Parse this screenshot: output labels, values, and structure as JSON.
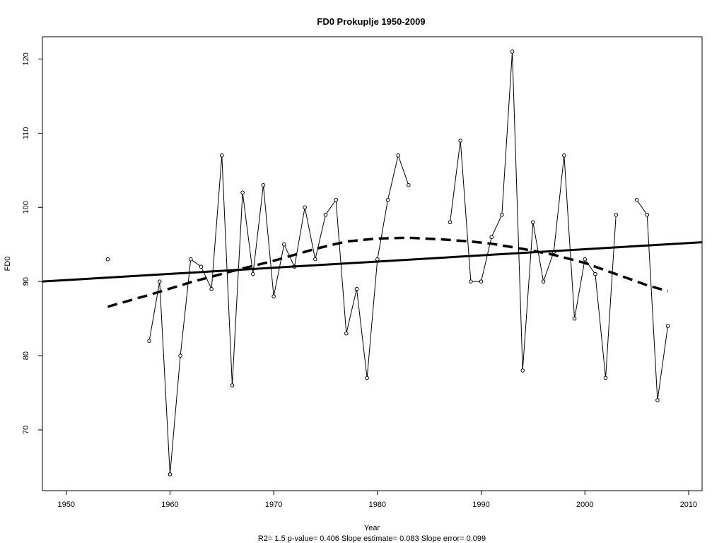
{
  "chart_data": {
    "type": "line",
    "title": "FD0   Prokuplje 1950-2009",
    "xlabel": "Year",
    "ylabel": "FD0",
    "stats": "R2= 1.5  p-value= 0.406  Slope estimate= 0.083  Slope error= 0.099",
    "xlim": [
      1947.7,
      2011.3
    ],
    "ylim": [
      61.8,
      123.0
    ],
    "xticks": [
      1950,
      1960,
      1970,
      1980,
      1990,
      2000,
      2010
    ],
    "yticks": [
      70,
      80,
      90,
      100,
      110,
      120
    ],
    "grid": false,
    "legend": "none",
    "series": [
      {
        "style": "line-with-open-points",
        "color": "#000000",
        "points": [
          [
            1954,
            93
          ],
          [
            1955,
            null
          ],
          [
            1956,
            null
          ],
          [
            1957,
            null
          ],
          [
            1958,
            82
          ],
          [
            1959,
            90
          ],
          [
            1960,
            64
          ],
          [
            1961,
            80
          ],
          [
            1962,
            93
          ],
          [
            1963,
            92
          ],
          [
            1964,
            89
          ],
          [
            1965,
            107
          ],
          [
            1966,
            76
          ],
          [
            1967,
            102
          ],
          [
            1968,
            91
          ],
          [
            1969,
            103
          ],
          [
            1970,
            88
          ],
          [
            1971,
            95
          ],
          [
            1972,
            92
          ],
          [
            1973,
            100
          ],
          [
            1974,
            93
          ],
          [
            1975,
            99
          ],
          [
            1976,
            101
          ],
          [
            1977,
            83
          ],
          [
            1978,
            89
          ],
          [
            1979,
            77
          ],
          [
            1980,
            93
          ],
          [
            1981,
            101
          ],
          [
            1982,
            107
          ],
          [
            1983,
            103
          ],
          [
            1984,
            null
          ],
          [
            1985,
            null
          ],
          [
            1986,
            null
          ],
          [
            1987,
            98
          ],
          [
            1988,
            109
          ],
          [
            1989,
            90
          ],
          [
            1990,
            90
          ],
          [
            1991,
            96
          ],
          [
            1992,
            99
          ],
          [
            1993,
            121
          ],
          [
            1994,
            78
          ],
          [
            1995,
            98
          ],
          [
            1996,
            90
          ],
          [
            1997,
            94
          ],
          [
            1998,
            107
          ],
          [
            1999,
            85
          ],
          [
            2000,
            93
          ],
          [
            2001,
            91
          ],
          [
            2002,
            77
          ],
          [
            2003,
            99
          ],
          [
            2004,
            null
          ],
          [
            2005,
            101
          ],
          [
            2006,
            99
          ],
          [
            2007,
            74
          ],
          [
            2008,
            84
          ]
        ]
      },
      {
        "style": "solid-thick",
        "color": "#000000",
        "points": [
          [
            1947.7,
            90.0
          ],
          [
            2011.3,
            95.3
          ]
        ]
      },
      {
        "style": "dashed-thick",
        "color": "#000000",
        "points": [
          [
            1954,
            86.6
          ],
          [
            1958,
            88.2
          ],
          [
            1962,
            89.9
          ],
          [
            1966,
            91.4
          ],
          [
            1970,
            92.8
          ],
          [
            1974,
            94.4
          ],
          [
            1977,
            95.4
          ],
          [
            1980,
            95.8
          ],
          [
            1983,
            95.9
          ],
          [
            1986,
            95.7
          ],
          [
            1989,
            95.4
          ],
          [
            1991,
            95.1
          ],
          [
            1994,
            94.4
          ],
          [
            1997,
            93.6
          ],
          [
            2000,
            92.5
          ],
          [
            2003,
            91.0
          ],
          [
            2006,
            89.5
          ],
          [
            2008,
            88.7
          ]
        ]
      }
    ]
  }
}
